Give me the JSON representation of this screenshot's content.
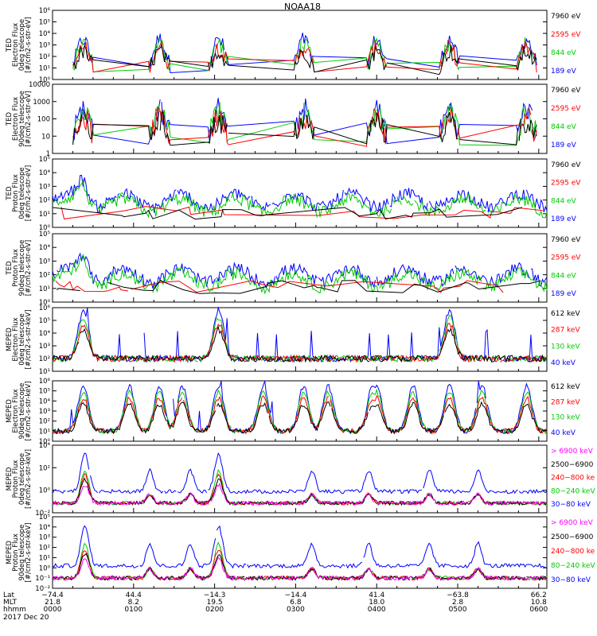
{
  "chart_data": {
    "type": "line",
    "title": "NOAA18",
    "date_label": "2017 Dec 20",
    "footer": {
      "row_labels": [
        "Lat",
        "MLT",
        "hhmm"
      ],
      "columns": [
        {
          "lat": "−74.4",
          "mlt": "21.8",
          "hhmm": "0000"
        },
        {
          "lat": "44.4",
          "mlt": "8.2",
          "hhmm": "0100"
        },
        {
          "lat": "−14.3",
          "mlt": "19.5",
          "hhmm": "0200"
        },
        {
          "lat": "−14.4",
          "mlt": "6.8",
          "hhmm": "0300"
        },
        {
          "lat": "41.4",
          "mlt": "18.0",
          "hhmm": "0400"
        },
        {
          "lat": "−63.8",
          "mlt": "2.8",
          "hhmm": "0500"
        },
        {
          "lat": "66.2",
          "mlt": "10.8",
          "hhmm": "0600"
        }
      ]
    },
    "panels": [
      {
        "ylabel": [
          "TED",
          "Electron Flux",
          "0deg telescope",
          "[#/cm2-s-str-eV]"
        ],
        "yticks": [
          "10⁰",
          "10¹",
          "10²",
          "10³",
          "10⁴",
          "10⁵",
          "10⁶"
        ],
        "ylim_log10": [
          0,
          6
        ],
        "legend": [
          {
            "label": "7960 eV",
            "color": "#000000"
          },
          {
            "label": "2595 eV",
            "color": "#ff0000"
          },
          {
            "label": "844 eV",
            "color": "#00cc00"
          },
          {
            "label": "189 eV",
            "color": "#0000ff"
          }
        ]
      },
      {
        "ylabel": [
          "TED",
          "Electron Flux",
          "90deg telescope",
          "[#/cm2-s-str-eV]"
        ],
        "yticks": [
          "1",
          "10",
          "100",
          "1000",
          "10000"
        ],
        "ylim_log10": [
          0,
          4
        ],
        "legend": [
          {
            "label": "7960 eV",
            "color": "#000000"
          },
          {
            "label": "2595 eV",
            "color": "#ff0000"
          },
          {
            "label": "844 eV",
            "color": "#00cc00"
          },
          {
            "label": "189 eV",
            "color": "#0000ff"
          }
        ]
      },
      {
        "ylabel": [
          "TED",
          "Proton Flux",
          "0deg telescope",
          "[#/cm2-s-str-eV]"
        ],
        "yticks": [
          "10⁰",
          "10¹",
          "10²",
          "10³",
          "10⁴",
          "10⁵"
        ],
        "ylim_log10": [
          0,
          5
        ],
        "legend": [
          {
            "label": "7960 eV",
            "color": "#000000"
          },
          {
            "label": "2595 eV",
            "color": "#ff0000"
          },
          {
            "label": "844 eV",
            "color": "#00cc00"
          },
          {
            "label": "189 eV",
            "color": "#0000ff"
          }
        ]
      },
      {
        "ylabel": [
          "TED",
          "Proton Flux",
          "90deg telescope",
          "[#/cm2-s-str-eV]"
        ],
        "yticks": [
          "10⁰",
          "10¹",
          "10²",
          "10³",
          "10⁴",
          "10⁵"
        ],
        "ylim_log10": [
          0,
          5
        ],
        "legend": [
          {
            "label": "7960 eV",
            "color": "#000000"
          },
          {
            "label": "2595 eV",
            "color": "#ff0000"
          },
          {
            "label": "844 eV",
            "color": "#00cc00"
          },
          {
            "label": "189 eV",
            "color": "#0000ff"
          }
        ]
      },
      {
        "ylabel": [
          "MEPED",
          "Electron Flux",
          "0deg telescope",
          "[#/cm2-s-str-keV]"
        ],
        "yticks": [
          "10¹",
          "10²",
          "10³",
          "10⁴",
          "10⁵",
          "10⁶"
        ],
        "ylim_log10": [
          1,
          6
        ],
        "legend": [
          {
            "label": "612 keV",
            "color": "#000000"
          },
          {
            "label": "287 keV",
            "color": "#ff0000"
          },
          {
            "label": "130 keV",
            "color": "#00cc00"
          },
          {
            "label": "40 keV",
            "color": "#0000ff"
          }
        ]
      },
      {
        "ylabel": [
          "MEPED",
          "Electron Flux",
          "90deg telescope",
          "[#/cm2-s-str-keV]"
        ],
        "yticks": [
          "10⁰",
          "10¹",
          "10²",
          "10³",
          "10⁴",
          "10⁵",
          "10⁶"
        ],
        "ylim_log10": [
          0,
          6
        ],
        "legend": [
          {
            "label": "612 keV",
            "color": "#000000"
          },
          {
            "label": "287 keV",
            "color": "#ff0000"
          },
          {
            "label": "130 keV",
            "color": "#00cc00"
          },
          {
            "label": "40 keV",
            "color": "#0000ff"
          }
        ]
      },
      {
        "ylabel": [
          "MEPED",
          "Proton Flux",
          "0deg telescope",
          "[#/cm2-s-str-keV]"
        ],
        "yticks": [
          "10⁻²",
          "10⁰",
          "10²",
          "10⁴"
        ],
        "ylim_log10": [
          -2,
          5
        ],
        "legend": [
          {
            "label": "> 6900 keV",
            "color": "#ff00ff"
          },
          {
            "label": "2500−6900",
            "color": "#000000"
          },
          {
            "label": "240−800 ke",
            "color": "#ff0000"
          },
          {
            "label": "80−240 keV",
            "color": "#00cc00"
          },
          {
            "label": "30−80 keV",
            "color": "#0000ff"
          }
        ]
      },
      {
        "ylabel": [
          "MEPED",
          "Proton Flux",
          "90deg telescope",
          "[#/cm2-s-str-keV]"
        ],
        "yticks": [
          "10⁻²",
          "10⁻¹",
          "10⁰",
          "10¹",
          "10²",
          "10³",
          "10⁴",
          "10⁵"
        ],
        "ylim_log10": [
          -2,
          5
        ],
        "legend": [
          {
            "label": "> 6900 keV",
            "color": "#ff00ff"
          },
          {
            "label": "2500−6900",
            "color": "#000000"
          },
          {
            "label": "240−800 ke",
            "color": "#ff0000"
          },
          {
            "label": "80−240 keV",
            "color": "#00cc00"
          },
          {
            "label": "30−80 keV",
            "color": "#0000ff"
          }
        ]
      }
    ],
    "xlim_hours": [
      0,
      6.1
    ]
  }
}
